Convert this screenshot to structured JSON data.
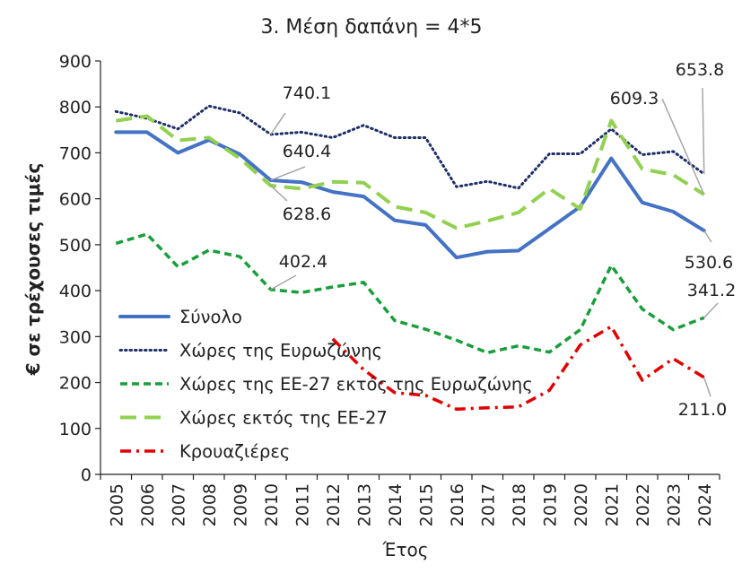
{
  "chart_data": {
    "type": "line",
    "title": "3. Μέση δαπάνη = 4*5",
    "xlabel": "Έτος",
    "ylabel": "€ σε τρέχουσες τιμές",
    "ylim": [
      0,
      900
    ],
    "yticks": [
      0,
      100,
      200,
      300,
      400,
      500,
      600,
      700,
      800,
      900
    ],
    "grid": false,
    "legend_position": "left, inside plot",
    "categories": [
      "2005",
      "2006",
      "2007",
      "2008",
      "2009",
      "2010",
      "2011",
      "2012",
      "2013",
      "2014",
      "2015",
      "2016",
      "2017",
      "2018",
      "2019",
      "2020",
      "2021",
      "2022",
      "2023",
      "2024"
    ],
    "series": [
      {
        "name": "Σύνολο",
        "color": "#4472C4",
        "style": "solid",
        "values": [
          745,
          745,
          700,
          728,
          697,
          640.4,
          636,
          615,
          605,
          553,
          543,
          472,
          485,
          487,
          535,
          583,
          688,
          592,
          572,
          530.6
        ]
      },
      {
        "name": "Χώρες της Ευρωζώνης",
        "color": "#1F2F66",
        "style": "dotted",
        "values": [
          790,
          775,
          752,
          802,
          787,
          740.1,
          745,
          733,
          760,
          733,
          733,
          626,
          638,
          623,
          698,
          698,
          752,
          696,
          703,
          653.8
        ]
      },
      {
        "name": "Χώρες της ΕΕ-27 εκτός της Ευρωζώνης",
        "color": "#1A9E3C",
        "style": "dashed",
        "values": [
          503,
          523,
          452,
          488,
          474,
          402.4,
          396,
          408,
          418,
          335,
          316,
          292,
          265,
          280,
          266,
          315,
          455,
          360,
          315,
          341.2
        ]
      },
      {
        "name": "Χώρες εκτός της ΕΕ-27",
        "color": "#92D050",
        "style": "long-dash",
        "values": [
          770,
          780,
          727,
          733,
          688,
          628.6,
          622,
          637,
          635,
          583,
          570,
          536,
          552,
          570,
          622,
          578,
          770,
          665,
          652,
          609.3
        ]
      },
      {
        "name": "Κρουαζιέρες",
        "color": "#E00000",
        "style": "dash-dot",
        "values": [
          null,
          null,
          null,
          null,
          null,
          null,
          null,
          295,
          228,
          178,
          172,
          142,
          145,
          147,
          183,
          282,
          322,
          205,
          252,
          211.0
        ]
      }
    ],
    "data_labels": [
      {
        "series": 1,
        "index": 5,
        "text": "740.1"
      },
      {
        "series": 0,
        "index": 5,
        "text": "640.4"
      },
      {
        "series": 3,
        "index": 5,
        "text": "628.6"
      },
      {
        "series": 2,
        "index": 5,
        "text": "402.4"
      },
      {
        "series": 3,
        "index": 19,
        "text": "609.3"
      },
      {
        "series": 1,
        "index": 19,
        "text": "653.8"
      },
      {
        "series": 0,
        "index": 19,
        "text": "530.6"
      },
      {
        "series": 2,
        "index": 19,
        "text": "341.2"
      },
      {
        "series": 4,
        "index": 19,
        "text": "211.0"
      }
    ]
  }
}
